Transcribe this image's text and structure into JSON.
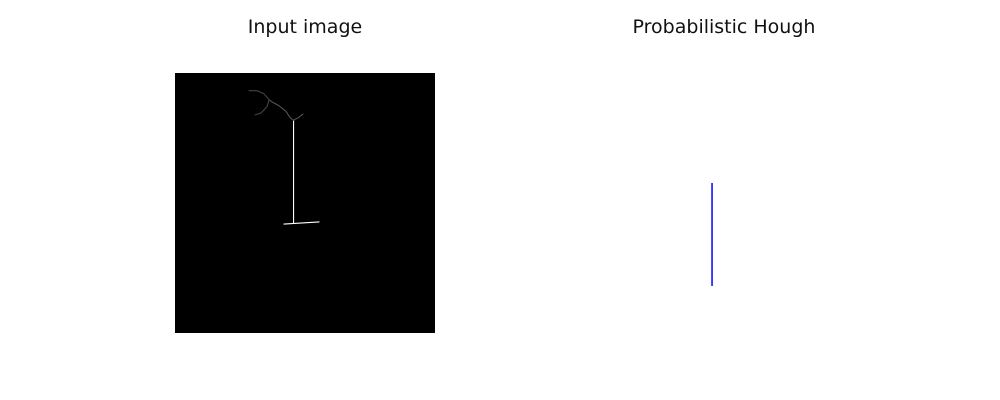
{
  "figure": {
    "left_title": "Input image",
    "right_title": "Probabilistic Hough"
  },
  "chart_data": [
    {
      "type": "image",
      "title": "Input image",
      "xlabel": "",
      "ylabel": "",
      "axis": "off",
      "image_size": [
        100,
        100
      ],
      "background": "#000000",
      "edges": [
        {
          "x": [
            45.6,
            45.6
          ],
          "y": [
            18.2,
            57.7
          ],
          "color": "#ffffff"
        },
        {
          "x": [
            41.9,
            55.4
          ],
          "y": [
            58.1,
            57.3
          ],
          "color": "#ffffff"
        },
        {
          "x": [
            45.6,
            44.3,
            42.7,
            40.0,
            37.3,
            36.2
          ],
          "y": [
            18.2,
            17.2,
            14.8,
            12.6,
            11.1,
            10.3
          ],
          "color": "#555555"
        },
        {
          "x": [
            28.5,
            31.5,
            34.2,
            36.2,
            35.4,
            33.1,
            30.8
          ],
          "y": [
            6.8,
            6.8,
            8.0,
            10.3,
            12.9,
            15.4,
            16.1
          ],
          "color": "#444444"
        },
        {
          "x": [
            45.6,
            47.7,
            49.2
          ],
          "y": [
            18.2,
            17.0,
            15.8
          ],
          "color": "#555555"
        }
      ]
    },
    {
      "type": "line",
      "title": "Probabilistic Hough",
      "xlabel": "",
      "ylabel": "",
      "axis": "off",
      "xlim": [
        0,
        100
      ],
      "ylim": [
        100,
        0
      ],
      "series": [
        {
          "x": [
            45.4,
            45.4
          ],
          "y": [
            18.1,
            57.7
          ],
          "color": "#0000ff"
        }
      ]
    }
  ]
}
